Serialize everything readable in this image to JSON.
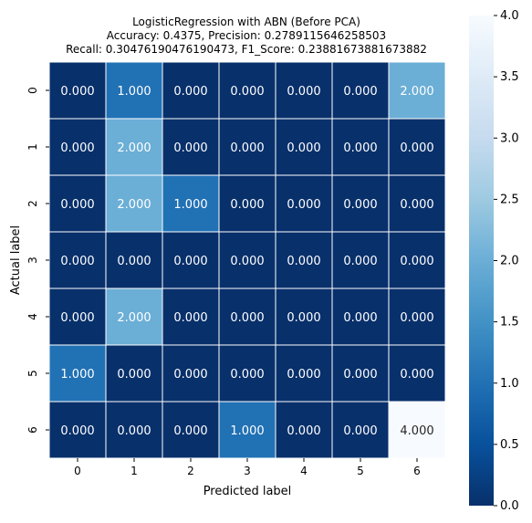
{
  "chart_data": {
    "type": "heatmap",
    "title_lines": [
      "LogisticRegression with ABN (Before PCA)",
      "Accuracy: 0.4375, Precision: 0.2789115646258503",
      "Recall: 0.30476190476190473, F1_Score: 0.23881673881673882"
    ],
    "xlabel": "Predicted label",
    "ylabel": "Actual label",
    "x_categories": [
      "0",
      "1",
      "2",
      "3",
      "4",
      "5",
      "6"
    ],
    "y_categories": [
      "0",
      "1",
      "2",
      "3",
      "4",
      "5",
      "6"
    ],
    "matrix": [
      [
        0,
        1,
        0,
        0,
        0,
        0,
        2
      ],
      [
        0,
        2,
        0,
        0,
        0,
        0,
        0
      ],
      [
        0,
        2,
        1,
        0,
        0,
        0,
        0
      ],
      [
        0,
        0,
        0,
        0,
        0,
        0,
        0
      ],
      [
        0,
        2,
        0,
        0,
        0,
        0,
        0
      ],
      [
        1,
        0,
        0,
        0,
        0,
        0,
        0
      ],
      [
        0,
        0,
        0,
        1,
        0,
        0,
        4
      ]
    ],
    "value_format_decimals": 3,
    "colorbar": {
      "range": [
        0,
        4
      ],
      "ticks": [
        "0.0",
        "0.5",
        "1.0",
        "1.5",
        "2.0",
        "2.5",
        "3.0",
        "3.5",
        "4.0"
      ]
    },
    "colormap": "Blues_r",
    "colors": [
      "#08306b",
      "#08519c",
      "#2171b5",
      "#4292c6",
      "#6baed6",
      "#9ecae1",
      "#c6dbef",
      "#deebf7",
      "#f7fbff"
    ]
  }
}
